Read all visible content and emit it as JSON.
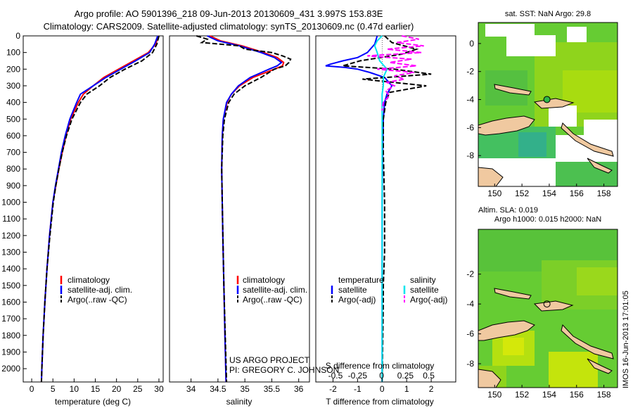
{
  "header": {
    "title_line1": "Argo profile: AO 5901396_218 09-Jun-2013 20130609_431 3.997S 153.83E",
    "title_line2": "Climatology: CARS2009. Satellite-adjusted climatology: synTS_20130609.nc (0.47d earlier)"
  },
  "colors": {
    "climatology": "#ff0000",
    "satellite": "#0000ff",
    "argo": "#000000",
    "salinity_satellite": "#00e5ee",
    "salinity_argo": "#ff00ff"
  },
  "chart_data": [
    {
      "type": "line",
      "id": "temperature",
      "xlabel": "temperature (deg C)",
      "ylabel": "",
      "xlim": [
        -2,
        31
      ],
      "ylim": [
        2080,
        0
      ],
      "xticks": [
        "0",
        "5",
        "10",
        "15",
        "20",
        "25",
        "30"
      ],
      "xtick_values": [
        0,
        5,
        10,
        15,
        20,
        25,
        30
      ],
      "yticks": [
        "0",
        "100",
        "200",
        "300",
        "400",
        "500",
        "600",
        "700",
        "800",
        "900",
        "1000",
        "1100",
        "1200",
        "1300",
        "1400",
        "1500",
        "1600",
        "1700",
        "1800",
        "1900",
        "2000"
      ],
      "ytick_values": [
        0,
        100,
        200,
        300,
        400,
        500,
        600,
        700,
        800,
        900,
        1000,
        1100,
        1200,
        1300,
        1400,
        1500,
        1600,
        1700,
        1800,
        1900,
        2000
      ],
      "legend": [
        "climatology",
        "satellite-adj. clim.",
        "Argo(..raw -QC)"
      ],
      "series": [
        {
          "name": "climatology",
          "color": "#ff0000",
          "depth": [
            0,
            50,
            100,
            150,
            200,
            250,
            300,
            350,
            400,
            500,
            600,
            700,
            800,
            900,
            1000,
            1200,
            1400,
            1600,
            1800,
            2000,
            2080
          ],
          "values": [
            29.9,
            29.2,
            27.5,
            24,
            20.5,
            17,
            14.5,
            12.2,
            11,
            9.2,
            8.1,
            7.2,
            6.4,
            5.7,
            5,
            4.2,
            3.6,
            3.1,
            2.7,
            2.4,
            2.3
          ]
        },
        {
          "name": "satellite",
          "color": "#0000ff",
          "depth": [
            0,
            50,
            100,
            150,
            200,
            250,
            300,
            350,
            400,
            500,
            600,
            700,
            800,
            900,
            1000,
            1200,
            1400,
            1600,
            1800,
            2000,
            2080
          ],
          "values": [
            29.7,
            29,
            27.8,
            24.5,
            21,
            17.5,
            14.5,
            11.5,
            10.6,
            9,
            7.9,
            7,
            6.3,
            5.6,
            5,
            4.2,
            3.6,
            3.1,
            2.7,
            2.4,
            2.3
          ]
        },
        {
          "name": "argo",
          "color": "#000000",
          "depth": [
            0,
            50,
            100,
            150,
            200,
            250,
            300,
            350,
            400,
            500,
            600,
            700,
            800,
            900,
            1000,
            1200,
            1400,
            1600,
            1800,
            2000,
            2080
          ],
          "values": [
            30,
            29.5,
            28.5,
            26,
            22,
            18.5,
            16,
            13,
            11.5,
            9.5,
            8.2,
            7.2,
            6.4,
            5.7,
            5.1,
            4.3,
            3.6,
            3.1,
            2.7,
            2.4,
            2.3
          ]
        }
      ]
    },
    {
      "type": "line",
      "id": "salinity",
      "xlabel": "salinity",
      "xlim": [
        33.6,
        36.2
      ],
      "ylim": [
        2080,
        0
      ],
      "xticks": [
        "34",
        "34.5",
        "35",
        "35.5",
        "36"
      ],
      "xtick_values": [
        34,
        34.5,
        35,
        35.5,
        36
      ],
      "legend": [
        "climatology",
        "satellite-adj. clim.",
        "Argo(..raw -QC)"
      ],
      "series": [
        {
          "name": "climatology",
          "color": "#ff0000",
          "depth": [
            0,
            30,
            60,
            100,
            130,
            160,
            180,
            200,
            250,
            300,
            350,
            400,
            500,
            600,
            800,
            1000,
            1200,
            1500,
            1800,
            2080
          ],
          "values": [
            34.35,
            34.55,
            34.95,
            35.35,
            35.6,
            35.72,
            35.7,
            35.55,
            35.15,
            34.9,
            34.75,
            34.67,
            34.6,
            34.58,
            34.57,
            34.58,
            34.59,
            34.61,
            34.63,
            34.65
          ]
        },
        {
          "name": "satellite",
          "color": "#0000ff",
          "depth": [
            0,
            30,
            60,
            100,
            130,
            160,
            180,
            200,
            250,
            300,
            350,
            400,
            500,
            600,
            800,
            1000,
            1200,
            1500,
            1800,
            2080
          ],
          "values": [
            34.3,
            34.5,
            34.9,
            35.3,
            35.55,
            35.68,
            35.6,
            35.45,
            35.1,
            34.88,
            34.75,
            34.66,
            34.6,
            34.58,
            34.57,
            34.58,
            34.59,
            34.61,
            34.63,
            34.65
          ]
        },
        {
          "name": "argo",
          "color": "#000000",
          "depth": [
            0,
            20,
            40,
            60,
            80,
            100,
            120,
            140,
            160,
            180,
            200,
            250,
            300,
            350,
            400,
            500,
            600,
            800,
            1000,
            1500,
            2080
          ],
          "values": [
            34.1,
            34.3,
            34.2,
            34.9,
            35.0,
            35.5,
            35.7,
            35.85,
            35.82,
            35.75,
            35.55,
            35.3,
            35.0,
            34.8,
            34.7,
            34.62,
            34.59,
            34.57,
            34.58,
            34.61,
            34.66
          ]
        }
      ]
    },
    {
      "type": "line",
      "id": "difference",
      "xlabel": "T difference from climatology",
      "xlabel_top": "S difference from climatology",
      "xlim": [
        -2.7,
        3.0
      ],
      "ylim": [
        2080,
        0
      ],
      "xticks": [
        "-2",
        "-1",
        "0",
        "1",
        "2"
      ],
      "xtick_values": [
        -2,
        -1,
        0,
        1,
        2
      ],
      "sticks": [
        "-0.5",
        "-0.25",
        "0",
        "0.25",
        "0.5"
      ],
      "stick_values": [
        -1.9,
        -1.0,
        -0.02,
        0.95,
        1.9
      ],
      "legend_t_title": "temperature",
      "legend_s_title": "salinity",
      "legend_t": [
        "satellite",
        "Argo(-adj)"
      ],
      "legend_s": [
        "satellite",
        "Argo(-adj)"
      ],
      "series": [
        {
          "name": "T satellite",
          "color": "#0000ff",
          "depth": [
            0,
            50,
            100,
            130,
            150,
            170,
            180,
            190,
            200,
            220,
            250,
            300,
            350,
            400,
            500,
            700,
            1000,
            1500,
            2080
          ],
          "values": [
            -0.2,
            -0.3,
            -0.6,
            -1.0,
            -1.6,
            -2.1,
            -2.3,
            -1.5,
            -1.0,
            -0.5,
            0.1,
            0.4,
            0.2,
            0.1,
            0.05,
            0.02,
            0,
            0,
            0
          ]
        },
        {
          "name": "T argo",
          "color": "#000000",
          "depth": [
            0,
            40,
            80,
            110,
            150,
            180,
            200,
            230,
            260,
            300,
            340,
            400,
            500,
            700,
            1000,
            1300,
            1500,
            1600,
            2080
          ],
          "values": [
            0.1,
            0.4,
            1.4,
            0.8,
            -0.9,
            -1.6,
            0.5,
            2.0,
            -0.8,
            1.8,
            0.3,
            0.15,
            0.05,
            0.05,
            0.1,
            0.1,
            0.05,
            0.05,
            0
          ]
        },
        {
          "name": "S satellite",
          "color": "#00e5ee",
          "depth": [
            0,
            30,
            60,
            100,
            150,
            200,
            250,
            300,
            350,
            400,
            500,
            700,
            1000,
            1500,
            2080
          ],
          "values": [
            0,
            -0.2,
            -0.3,
            -0.2,
            -0.1,
            0.2,
            0.05,
            0.05,
            0,
            0,
            0,
            0,
            0,
            0,
            0
          ]
        },
        {
          "name": "S argo",
          "color": "#ff00ff",
          "depth": [
            0,
            20,
            40,
            60,
            80,
            100,
            120,
            140,
            160,
            180,
            200,
            220,
            240,
            260,
            280,
            300,
            330,
            360,
            400,
            450
          ],
          "values": [
            0.8,
            1.5,
            0.6,
            1.7,
            0.2,
            1.6,
            -0.6,
            1.2,
            0.3,
            1.4,
            -0.2,
            1.3,
            0.5,
            0.9,
            0.2,
            0.5,
            0.15,
            0.3,
            0.05,
            0
          ]
        }
      ]
    }
  ],
  "footer": {
    "credit_line1": "US ARGO PROJECT",
    "credit_line2": "PI: GREGORY C. JOHNSON",
    "vertical_stamp": "IMOS 16-Jun-2013 17:01:05"
  },
  "maps": {
    "sst_title": "sat. SST: NaN Argo: 29.8",
    "sla_title_line1": "Altim. SLA: 0.019",
    "sla_title_line2": "Argo h1000: 0.015 h2000: NaN",
    "xticks": [
      "150",
      "152",
      "154",
      "156",
      "158"
    ],
    "xtick_values": [
      150,
      152,
      154,
      156,
      158
    ],
    "sst_yticks": [
      "0",
      "-2",
      "-4",
      "-6",
      "-8"
    ],
    "sla_yticks": [
      "-2",
      "-4",
      "-6",
      "-8"
    ],
    "lon_range": [
      148.8,
      159
    ],
    "lat_range_sst": [
      -10.2,
      1.5
    ],
    "lat_range_sla": [
      -9.6,
      1.0
    ],
    "argo_lon": 153.83,
    "argo_lat": -3.997
  }
}
